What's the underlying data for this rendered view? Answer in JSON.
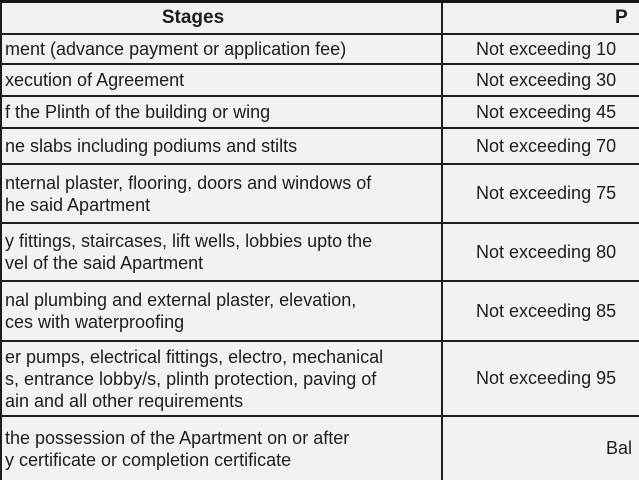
{
  "table": {
    "header": {
      "stages_label": "Stages",
      "payment_label": "P"
    },
    "rows": [
      {
        "stage": "ment (advance payment or application fee)",
        "payment": "Not exceeding 10"
      },
      {
        "stage": "xecution of Agreement",
        "payment": "Not exceeding 30"
      },
      {
        "stage": "f the Plinth of the building or wing",
        "payment": "Not exceeding 45"
      },
      {
        "stage": "ne slabs including podiums and stilts",
        "payment": "Not exceeding 70"
      },
      {
        "stage": "nternal plaster, flooring, doors and windows of\nhe said Apartment",
        "payment": "Not exceeding 75"
      },
      {
        "stage": "y fittings, staircases, lift wells, lobbies upto the\nvel of the said Apartment",
        "payment": "Not exceeding 80"
      },
      {
        "stage": "nal plumbing and external plaster, elevation,\nces with waterproofing",
        "payment": "Not exceeding 85"
      },
      {
        "stage": "er pumps, electrical fittings, electro, mechanical\ns, entrance lobby/s, plinth protection, paving of\nain and all other requirements",
        "payment": "Not exceeding 95"
      },
      {
        "stage": "the possession of the Apartment on or after\ny certificate or completion certificate",
        "payment": "Bal"
      }
    ],
    "colors": {
      "border": "#1f1f1f",
      "background": "#f3f2f0",
      "text": "#1d1d1d"
    }
  }
}
